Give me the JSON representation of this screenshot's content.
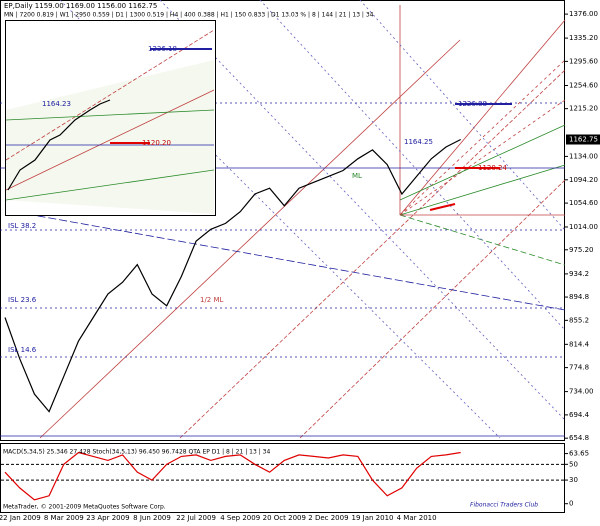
{
  "chart_data": [
    {
      "type": "line",
      "title": "EP,Daily  1159.00 1169.00 1156.00 1162.75",
      "subtitle": "MN | 7200  0.819 | W1 | 2950  0.559 | D1 | 1300  0.519 | H4 | 400  0.388 | H1 | 150  0.833 | D1  13.03 % | 8 | 144 | 21 | 13 | 34",
      "categories": [
        null,
        "22 Jan 2009",
        null,
        null,
        "8 Mar 2009",
        null,
        null,
        "23 Apr 2009",
        null,
        null,
        "8 Jun 2009",
        null,
        null,
        "22 Jul 2009",
        null,
        null,
        "4 Sep 2009",
        null,
        null,
        "20 Oct 2009",
        null,
        null,
        "2 Dec 2009",
        null,
        null,
        "19 Jan 2010",
        null,
        null,
        "4 Mar 2010",
        null,
        null,
        null
      ],
      "values": [
        860,
        790,
        730,
        700,
        760,
        820,
        860,
        900,
        920,
        950,
        900,
        880,
        930,
        990,
        1010,
        1020,
        1040,
        1070,
        1080,
        1050,
        1080,
        1090,
        1100,
        1110,
        1130,
        1145,
        1120,
        1070,
        1100,
        1130,
        1150,
        1162.75
      ],
      "color": "#000000",
      "ylim": [
        650,
        1400
      ],
      "yticks": [
        {
          "value": 1376,
          "label": "1376.00"
        },
        {
          "value": 1335.2,
          "label": "1335.20"
        },
        {
          "value": 1295.6,
          "label": "1295.60"
        },
        {
          "value": 1254.6,
          "label": "1254.60"
        },
        {
          "value": 1215.2,
          "label": "1215.20"
        },
        {
          "value": 1134,
          "label": "1134.00"
        },
        {
          "value": 1094.2,
          "label": "1094.20"
        },
        {
          "value": 1054.6,
          "label": "1054.60"
        },
        {
          "value": 1014,
          "label": "1014.00"
        },
        {
          "value": 975.2,
          "label": "975.20"
        },
        934.2,
        894.8,
        855.2,
        814.4,
        774.8,
        {
          "value": 734,
          "label": "734.00"
        },
        694.4,
        654.8
      ],
      "last_price": {
        "value": 1162.75,
        "label": "1162.75"
      },
      "annotations": [
        "ISL 38.2",
        "ISL 23.6",
        "ISL 14.6",
        "1/2 ML",
        "1164.25",
        "1226.88",
        "1120.24",
        "1236.18",
        "1164.23",
        "1120.20",
        "ML"
      ]
    },
    {
      "type": "line",
      "title": "MACD(5,34,5) 25.346 27.428  Stoch(34,5,13) 96.450 96.7428   QTA EP D1 | 8 | 21 | 13 | 34",
      "values": [
        40,
        20,
        5,
        10,
        50,
        65,
        60,
        55,
        62,
        40,
        30,
        50,
        60,
        62,
        55,
        60,
        62,
        50,
        40,
        55,
        62,
        60,
        58,
        62,
        60,
        30,
        10,
        20,
        45,
        60,
        62,
        65
      ],
      "color": "#e00000",
      "ylim": [
        -8,
        72
      ],
      "yticks": [
        63.65,
        50,
        30,
        0
      ],
      "footer": "Fibonacci Traders Club",
      "copyright": "MetaTrader, © 2001-2009 MetaQuotes Software Corp."
    }
  ]
}
